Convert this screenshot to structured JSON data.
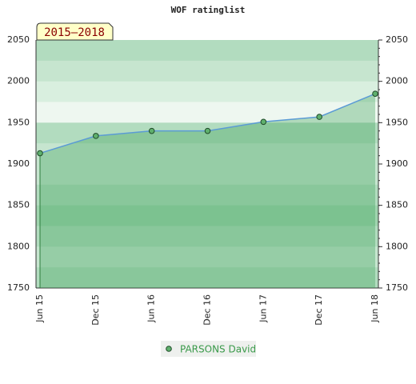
{
  "chart_data": {
    "type": "line",
    "title": "WOF ratinglist",
    "label": "2015–2018",
    "categories": [
      "Jun 15",
      "Dec 15",
      "Jun 16",
      "Dec 16",
      "Jun 17",
      "Dec 17",
      "Jun 18"
    ],
    "series": [
      {
        "name": "PARSONS David",
        "color": "#5b9bd5",
        "values": [
          1913,
          1934,
          1940,
          1940,
          1951,
          1957,
          1985
        ]
      }
    ],
    "ylim": [
      1750,
      2050
    ],
    "yticks": [
      1750,
      1800,
      1850,
      1900,
      1950,
      2000,
      2050
    ]
  }
}
